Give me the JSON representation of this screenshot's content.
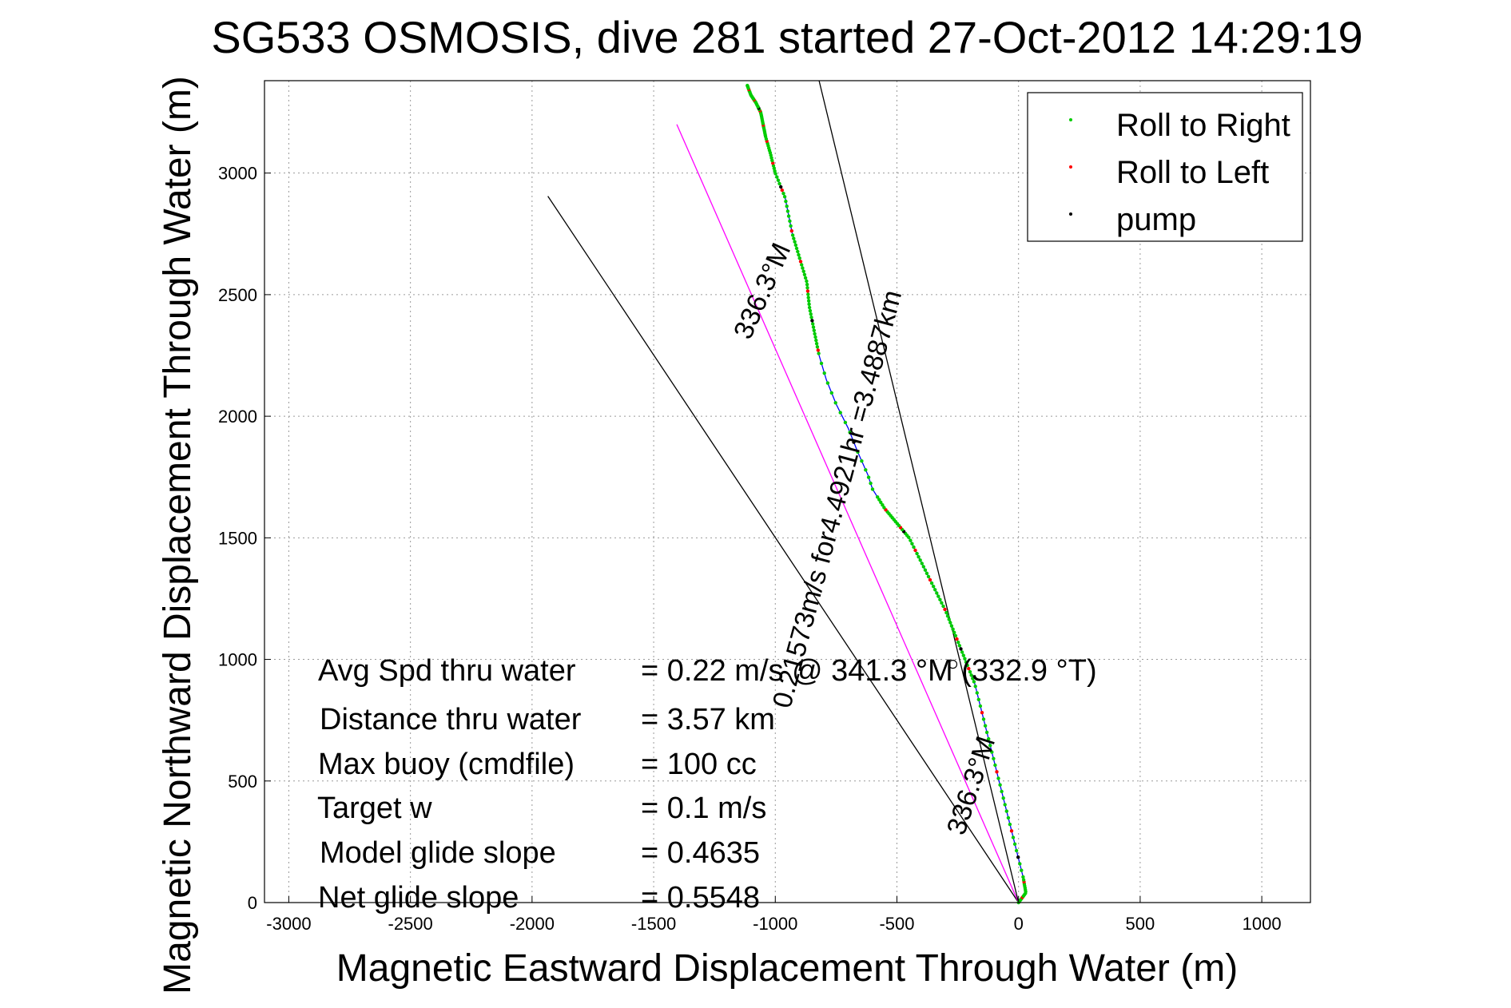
{
  "chart_data": {
    "type": "line",
    "title": "SG533 OSMOSIS, dive 281 started 27-Oct-2012 14:29:19",
    "xlabel": "Magnetic Eastward Displacement Through Water (m)",
    "ylabel": "Magnetic Northward Displacement Through Water (m)",
    "xlim": [
      -3100,
      1200
    ],
    "ylim": [
      0,
      3380
    ],
    "xticks": [
      -3000,
      -2500,
      -2000,
      -1500,
      -1000,
      -500,
      0,
      500,
      1000
    ],
    "yticks": [
      0,
      500,
      1000,
      1500,
      2000,
      2500,
      3000
    ],
    "grid": true,
    "legend_position": "top-right",
    "legend": [
      {
        "label": "Roll to Right",
        "color": "#00cc00"
      },
      {
        "label": "Roll to Left",
        "color": "#ff0000"
      },
      {
        "label": "pump",
        "color": "#000000"
      }
    ],
    "track": {
      "color": "#0000ff",
      "x": [
        0,
        30,
        20,
        -30,
        -80,
        -130,
        -180,
        -220,
        -260,
        -300,
        -350,
        -400,
        -450,
        -500,
        -550,
        -600,
        -620,
        -660,
        -700,
        -750,
        -790,
        -820,
        -840,
        -860,
        -870,
        -900,
        -930,
        -960,
        -1000,
        -1020,
        -1040,
        -1050,
        -1060,
        -1080,
        -1100,
        -1115
      ],
      "y": [
        0,
        40,
        100,
        300,
        500,
        700,
        900,
        1000,
        1100,
        1200,
        1300,
        1400,
        1500,
        1560,
        1620,
        1700,
        1760,
        1850,
        1950,
        2050,
        2150,
        2250,
        2350,
        2450,
        2550,
        2650,
        2750,
        2900,
        3000,
        3080,
        3150,
        3200,
        3250,
        3290,
        3320,
        3360
      ]
    },
    "reference_lines": [
      {
        "x": [
          0,
          -1935
        ],
        "y": [
          0,
          2905
        ],
        "color": "#000000"
      },
      {
        "x": [
          0,
          -1405
        ],
        "y": [
          0,
          3200
        ],
        "color": "#ff00ff"
      },
      {
        "x": [
          0,
          -820
        ],
        "y": [
          0,
          3380
        ],
        "color": "#000000"
      }
    ],
    "markers": [
      {
        "x": -270,
        "y": 980,
        "symbol": "circle"
      }
    ],
    "annotations": [
      {
        "text": "336.3°M",
        "x": -1020,
        "y": 2500,
        "rotation_deg": -66
      },
      {
        "text": "0.21573m/s for4.4921hr =3.4887km",
        "x": -710,
        "y": 1650,
        "rotation_deg": -75
      },
      {
        "text": "336.3°M",
        "x": -160,
        "y": 470,
        "rotation_deg": -72
      }
    ]
  },
  "stats": [
    {
      "label": "Avg Spd thru water",
      "value": "=  0.22 m/s @ 341.3  °M (332.9 °T)"
    },
    {
      "label": "Distance thru water",
      "value": "=  3.57 km"
    },
    {
      "label": "Max buoy (cmdfile)",
      "value": "= 100 cc"
    },
    {
      "label": "Target w",
      "value": "= 0.1 m/s"
    },
    {
      "label": "Model glide slope",
      "value": "= 0.4635"
    },
    {
      "label": "Net glide slope",
      "value": "= 0.5548"
    }
  ]
}
